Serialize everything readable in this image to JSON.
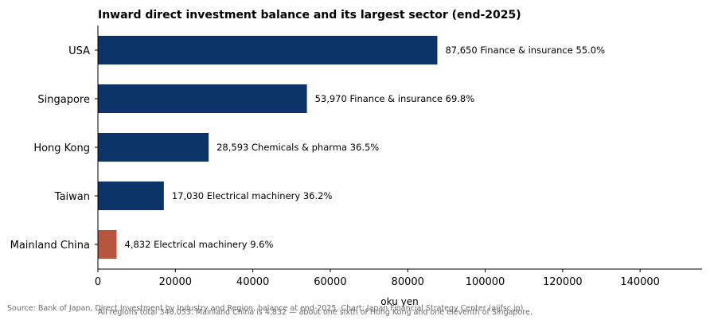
{
  "chart_data": {
    "type": "bar",
    "orientation": "horizontal",
    "title": "Inward direct investment balance and its largest sector (end-2025)",
    "xlabel": "oku yen",
    "ylabel": "",
    "xlim": [
      0,
      156000
    ],
    "xticks": [
      0,
      20000,
      40000,
      60000,
      80000,
      100000,
      120000,
      140000
    ],
    "xtick_labels": [
      "0",
      "20000",
      "40000",
      "60000",
      "80000",
      "100000",
      "120000",
      "140000"
    ],
    "grid": false,
    "categories": [
      "USA",
      "Singapore",
      "Hong Kong",
      "Taiwan",
      "Mainland China"
    ],
    "values": [
      87650,
      53970,
      28593,
      17030,
      4832
    ],
    "largest_sector": [
      "Finance & insurance 55.0%",
      "Finance & insurance 69.8%",
      "Chemicals & pharma 36.5%",
      "Electrical machinery 36.2%",
      "Electrical machinery 9.6%"
    ],
    "data_labels": [
      "87,650  Finance & insurance 55.0%",
      "53,970  Finance & insurance 69.8%",
      "28,593  Chemicals & pharma 36.5%",
      "17,030  Electrical machinery 36.2%",
      "4,832  Electrical machinery 9.6%"
    ],
    "colors": [
      "#0d3468",
      "#0d3468",
      "#0d3468",
      "#0d3468",
      "#b85540"
    ],
    "highlight": "Mainland China",
    "source": "Source: Bank of Japan, Direct Investment by Industry and Region, balance at end-2025. Chart: Japan Financial Strategy Center (aijfsc.jp)",
    "note": "All regions total 340,053. Mainland China is 4,832 — about one sixth of Hong Kong and one eleventh of Singapore."
  }
}
